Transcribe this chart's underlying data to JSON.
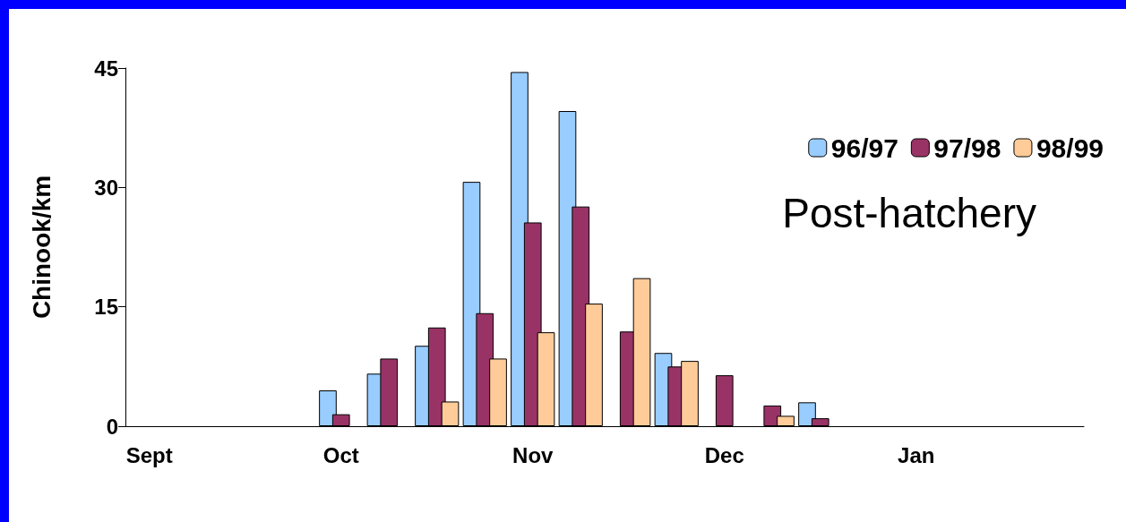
{
  "chart_data": {
    "type": "bar",
    "ylabel": "Chinook/km",
    "categories": [
      "Sept",
      null,
      null,
      null,
      "Oct",
      null,
      null,
      null,
      "Nov",
      null,
      null,
      null,
      "Dec",
      null,
      null,
      null,
      "Jan",
      null,
      null,
      null
    ],
    "series": [
      {
        "name": "96/97",
        "color": "#99ccff",
        "values": [
          null,
          null,
          null,
          null,
          4.5,
          6.6,
          10.1,
          30.7,
          44.5,
          39.6,
          null,
          9.2,
          null,
          null,
          3.0,
          null,
          null,
          null,
          null,
          null
        ]
      },
      {
        "name": "97/98",
        "color": "#993366",
        "values": [
          null,
          null,
          null,
          null,
          1.5,
          8.5,
          12.4,
          14.2,
          25.6,
          27.6,
          11.9,
          7.5,
          6.4,
          2.6,
          1.0,
          null,
          null,
          null,
          null,
          null
        ]
      },
      {
        "name": "98/99",
        "color": "#ffcc99",
        "values": [
          null,
          null,
          null,
          null,
          null,
          null,
          3.1,
          8.5,
          11.8,
          15.4,
          18.6,
          8.2,
          null,
          1.3,
          null,
          null,
          null,
          null,
          null,
          null
        ]
      }
    ],
    "ylim": [
      0,
      45
    ],
    "yticks": [
      0,
      15,
      30,
      45
    ],
    "grid": false,
    "legend": "top right",
    "annotations": [
      "Post-hatchery"
    ]
  }
}
